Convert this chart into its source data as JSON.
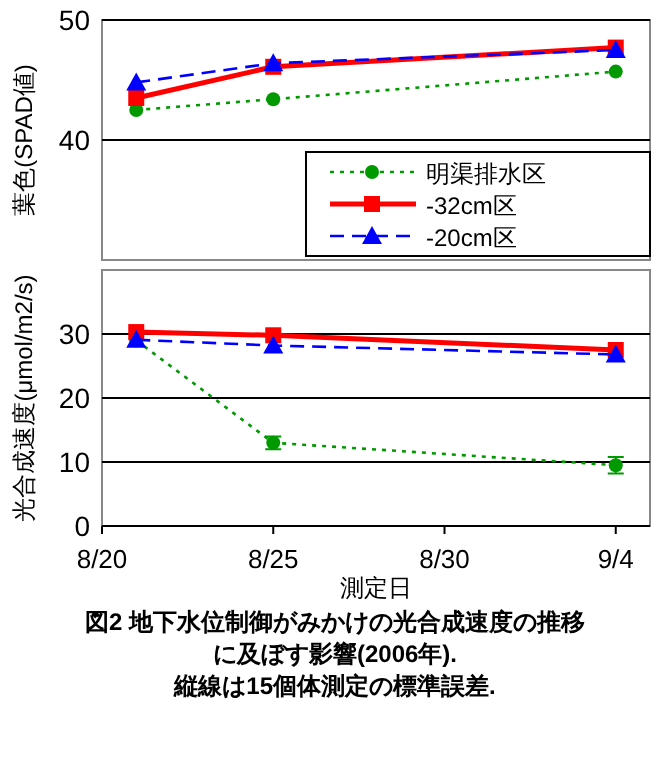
{
  "chart_data": [
    {
      "type": "line",
      "ylabel": "葉色(SPAD値)",
      "x": [
        "--08-21",
        "--08-25",
        "--09-04"
      ],
      "xlim": [
        "--08-20",
        "--09-05"
      ],
      "ylim": [
        30,
        50
      ],
      "yticks": [
        40,
        50
      ],
      "tick_labels": "y",
      "grid": "y",
      "legend": "bottom right",
      "series": [
        {
          "name": "明渠排水区",
          "color": "#009900",
          "marker": "circle",
          "line_style": "dotted",
          "values": [
            42.5,
            43.4,
            45.7
          ]
        },
        {
          "name": "-32cm区",
          "color": "#ff0000",
          "marker": "square",
          "line_style": "solid",
          "values": [
            43.5,
            46.1,
            47.7
          ]
        },
        {
          "name": "-20cm区",
          "color": "#0000ff",
          "marker": "triangle",
          "line_style": "dashed",
          "values": [
            44.8,
            46.4,
            47.5
          ]
        }
      ]
    },
    {
      "type": "line",
      "ylabel": "光合成速度(μmol/m2/s)",
      "xlabel": "測定日",
      "x": [
        "--08-21",
        "--08-25",
        "--09-04"
      ],
      "xlim": [
        "--08-20",
        "--09-05"
      ],
      "xticks": [
        {
          "value": "--08-20",
          "label": "8/20"
        },
        {
          "value": "--08-25",
          "label": "8/25"
        },
        {
          "value": "--08-30",
          "label": "8/30"
        },
        {
          "value": "--09-04",
          "label": "9/4"
        }
      ],
      "ylim": [
        0,
        40
      ],
      "yticks": [
        0,
        10,
        20,
        30
      ],
      "grid": "y",
      "series": [
        {
          "color": "#009900",
          "marker": "circle",
          "line_style": "dotted",
          "values": [
            29.0,
            13.0,
            9.5
          ],
          "errors": [
            null,
            1.0,
            1.3
          ]
        },
        {
          "color": "#ff0000",
          "marker": "square",
          "line_style": "solid",
          "values": [
            30.3,
            29.8,
            27.5
          ]
        },
        {
          "color": "#0000ff",
          "marker": "triangle",
          "line_style": "dashed",
          "values": [
            29.1,
            28.2,
            26.8
          ]
        }
      ],
      "annotations": [
        "図2 地下水位制御がみかけの光合成速度の推移に及ぼす影響(2006年).",
        "縦線は15個体測定の標準誤差."
      ]
    }
  ]
}
